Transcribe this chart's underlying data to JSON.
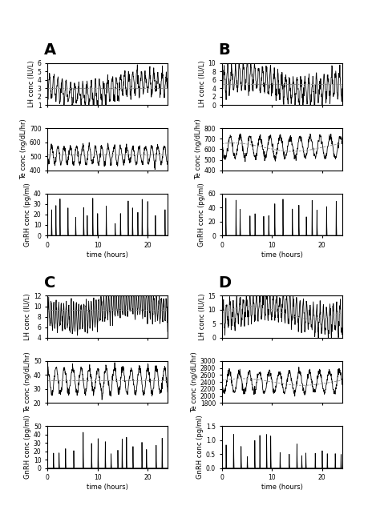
{
  "panels": [
    "A",
    "B",
    "C",
    "D"
  ],
  "panel_labels_fontsize": 14,
  "axis_label_fontsize": 6,
  "tick_fontsize": 5.5,
  "time_label": "time (hours)",
  "panels_data": {
    "A": {
      "LH": {
        "ylim": [
          1,
          6
        ],
        "yticks": [
          1,
          2,
          3,
          4,
          5,
          6
        ],
        "ylabel": "LH conc (IU/L)",
        "mean": 3.0
      },
      "Te": {
        "ylim": [
          400,
          700
        ],
        "yticks": [
          400,
          500,
          600,
          700
        ],
        "ylabel": "Te conc (ng/dL/hr)",
        "mean": 510
      },
      "GnRH": {
        "ylim": [
          0,
          40
        ],
        "yticks": [
          0,
          10,
          20,
          30,
          40
        ],
        "ylabel": "GnRH conc (pg/ml)"
      }
    },
    "B": {
      "LH": {
        "ylim": [
          0,
          10
        ],
        "yticks": [
          0,
          2,
          4,
          6,
          8,
          10
        ],
        "ylabel": "LH conc (IU/L)",
        "mean": 5.0
      },
      "Te": {
        "ylim": [
          400,
          800
        ],
        "yticks": [
          400,
          500,
          600,
          700,
          800
        ],
        "ylabel": "Te conc (ng/dL/hr)",
        "mean": 620
      },
      "GnRH": {
        "ylim": [
          0,
          60
        ],
        "yticks": [
          0,
          20,
          40,
          60
        ],
        "ylabel": "GnRH conc (pg/ml)"
      }
    },
    "C": {
      "LH": {
        "ylim": [
          4,
          12
        ],
        "yticks": [
          4,
          6,
          8,
          10,
          12
        ],
        "ylabel": "LH conc (IU/L)",
        "mean": 9.3
      },
      "Te": {
        "ylim": [
          20,
          50
        ],
        "yticks": [
          20,
          30,
          40,
          50
        ],
        "ylabel": "Te conc (ng/dL/hr)",
        "mean": 36
      },
      "GnRH": {
        "ylim": [
          0,
          50
        ],
        "yticks": [
          0,
          10,
          20,
          30,
          40,
          50
        ],
        "ylabel": "GnRH conc (pg/ml)"
      }
    },
    "D": {
      "LH": {
        "ylim": [
          0,
          15
        ],
        "yticks": [
          0,
          5,
          10,
          15
        ],
        "ylabel": "LH conc (IU/L)",
        "mean": 9.0
      },
      "Te": {
        "ylim": [
          1800,
          3000
        ],
        "yticks": [
          1800,
          2000,
          2200,
          2400,
          2600,
          2800,
          3000
        ],
        "ylabel": "Te conc (ng/dL/hr)",
        "mean": 2400
      },
      "GnRH": {
        "ylim": [
          0,
          1.5
        ],
        "yticks": [
          0,
          0.5,
          1.0,
          1.5
        ],
        "ylabel": "GnRH conc (pg/ml)"
      }
    }
  },
  "line_color": "#000000",
  "dashed_color": "#888888",
  "bg_color": "#ffffff",
  "seed_A": 42,
  "seed_B": 123,
  "seed_C": 77,
  "seed_D": 55
}
